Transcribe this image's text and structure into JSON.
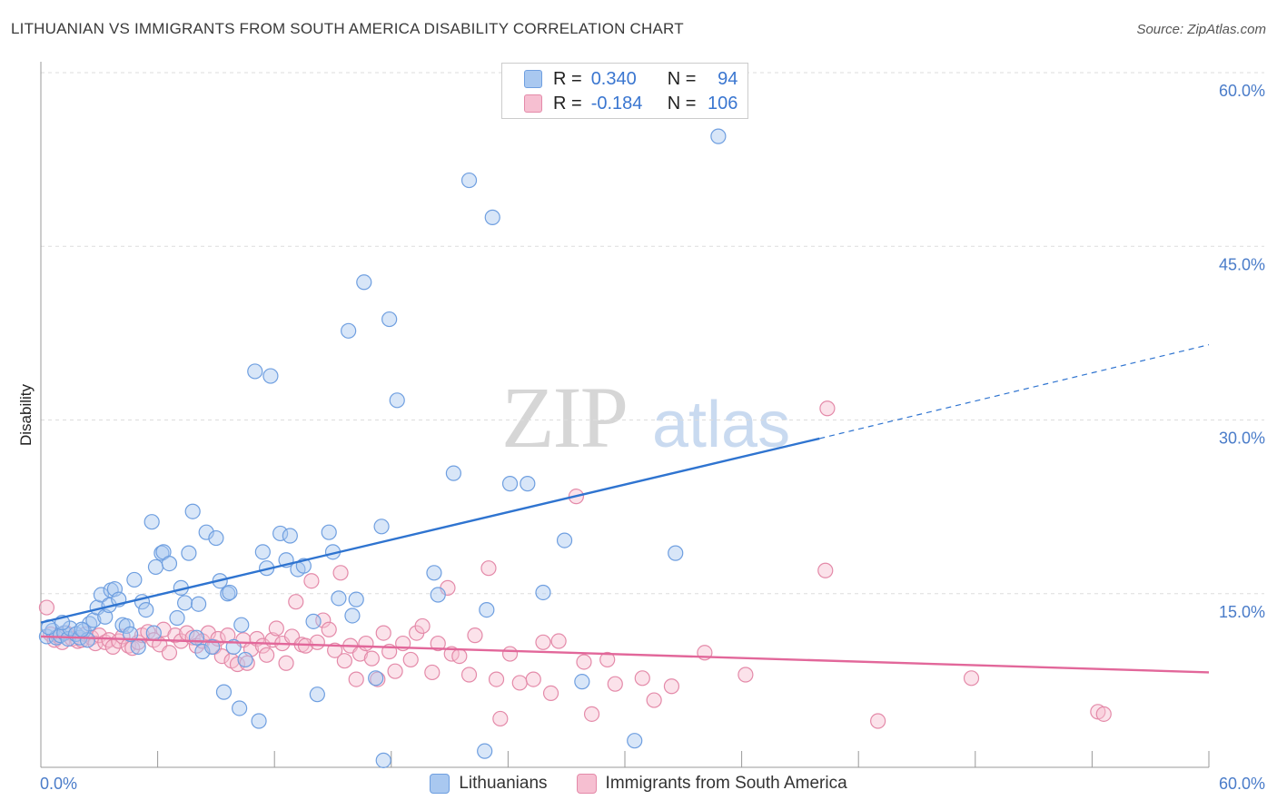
{
  "header": {
    "title": "LITHUANIAN VS IMMIGRANTS FROM SOUTH AMERICA DISABILITY CORRELATION CHART",
    "source": "Source: ZipAtlas.com"
  },
  "watermark": {
    "part1": "ZIP",
    "part2": "atlas"
  },
  "legend": {
    "rows": [
      {
        "r_label": "R =",
        "r_value": "0.340",
        "n_label": "N =",
        "n_value": "94",
        "color": "#a9c8f0",
        "border": "#6f9fe0"
      },
      {
        "r_label": "R =",
        "r_value": "-0.184",
        "n_label": "N =",
        "n_value": "106",
        "color": "#f6bfd1",
        "border": "#e48aa9"
      }
    ]
  },
  "bottom_legend": {
    "items": [
      {
        "label": "Lithuanians",
        "color": "#a9c8f0",
        "border": "#6f9fe0"
      },
      {
        "label": "Immigrants from South America",
        "color": "#f6bfd1",
        "border": "#e48aa9"
      }
    ]
  },
  "chart_data": {
    "type": "scatter",
    "xlabel": "",
    "ylabel": "Disability",
    "xlim": [
      0,
      60
    ],
    "ylim": [
      0,
      60
    ],
    "x_tick_labels": [
      {
        "value": 0,
        "label": "0.0%"
      },
      {
        "value": 60,
        "label": "60.0%"
      }
    ],
    "y_tick_labels": [
      {
        "value": 15,
        "label": "15.0%"
      },
      {
        "value": 30,
        "label": "30.0%"
      },
      {
        "value": 45,
        "label": "45.0%"
      },
      {
        "value": 60,
        "label": "60.0%"
      }
    ],
    "grid": true,
    "colors": {
      "blue": "#6f9fe0",
      "blue_line": "#2f74d0",
      "pink": "#e48aa9",
      "pink_line": "#e2679a"
    },
    "series": [
      {
        "name": "Lithuanians",
        "trend": {
          "x0": 0,
          "y0": 12.5,
          "x1": 40,
          "y1": 28.4,
          "dash_to_x": 60,
          "dash_to_y": 36.5
        },
        "points": [
          [
            0.3,
            11.3
          ],
          [
            0.6,
            11.8
          ],
          [
            0.8,
            11.2
          ],
          [
            1.0,
            11.4
          ],
          [
            1.2,
            11.6
          ],
          [
            1.4,
            11.1
          ],
          [
            1.5,
            12.0
          ],
          [
            1.8,
            11.5
          ],
          [
            2.0,
            11.2
          ],
          [
            2.2,
            11.8
          ],
          [
            2.4,
            11.0
          ],
          [
            2.5,
            12.4
          ],
          [
            2.7,
            12.7
          ],
          [
            2.9,
            13.8
          ],
          [
            3.1,
            14.9
          ],
          [
            3.3,
            13.0
          ],
          [
            3.5,
            14.0
          ],
          [
            3.6,
            15.3
          ],
          [
            3.8,
            15.4
          ],
          [
            4.0,
            14.5
          ],
          [
            4.2,
            12.3
          ],
          [
            4.4,
            12.2
          ],
          [
            4.6,
            11.5
          ],
          [
            4.8,
            16.2
          ],
          [
            5.0,
            10.4
          ],
          [
            5.2,
            14.3
          ],
          [
            5.4,
            13.6
          ],
          [
            5.7,
            21.2
          ],
          [
            5.8,
            11.6
          ],
          [
            5.9,
            17.3
          ],
          [
            6.2,
            18.5
          ],
          [
            6.3,
            18.6
          ],
          [
            6.6,
            17.6
          ],
          [
            7.0,
            12.9
          ],
          [
            7.2,
            15.5
          ],
          [
            7.4,
            14.2
          ],
          [
            7.6,
            18.5
          ],
          [
            7.8,
            22.1
          ],
          [
            8.1,
            14.1
          ],
          [
            8.3,
            10.0
          ],
          [
            8.5,
            20.3
          ],
          [
            8.8,
            10.4
          ],
          [
            9.0,
            19.8
          ],
          [
            9.2,
            16.1
          ],
          [
            9.4,
            6.5
          ],
          [
            9.6,
            15.0
          ],
          [
            9.7,
            15.1
          ],
          [
            9.9,
            10.4
          ],
          [
            10.2,
            5.1
          ],
          [
            10.3,
            12.3
          ],
          [
            10.5,
            9.3
          ],
          [
            11.0,
            34.2
          ],
          [
            11.2,
            4.0
          ],
          [
            11.4,
            18.6
          ],
          [
            11.6,
            17.2
          ],
          [
            11.8,
            33.8
          ],
          [
            12.3,
            20.2
          ],
          [
            12.6,
            17.9
          ],
          [
            12.8,
            20.0
          ],
          [
            13.2,
            17.1
          ],
          [
            13.5,
            17.4
          ],
          [
            14.0,
            12.6
          ],
          [
            14.2,
            6.3
          ],
          [
            14.8,
            20.3
          ],
          [
            15.0,
            18.6
          ],
          [
            15.3,
            14.6
          ],
          [
            15.8,
            37.7
          ],
          [
            16.0,
            13.1
          ],
          [
            16.2,
            14.5
          ],
          [
            16.6,
            41.9
          ],
          [
            17.2,
            7.7
          ],
          [
            17.5,
            20.8
          ],
          [
            17.6,
            0.6
          ],
          [
            17.9,
            38.7
          ],
          [
            18.3,
            31.7
          ],
          [
            20.2,
            16.8
          ],
          [
            20.4,
            14.9
          ],
          [
            21.2,
            25.4
          ],
          [
            22.0,
            50.7
          ],
          [
            22.8,
            1.4
          ],
          [
            22.9,
            13.6
          ],
          [
            23.2,
            47.5
          ],
          [
            24.1,
            24.5
          ],
          [
            25.0,
            24.5
          ],
          [
            25.8,
            15.1
          ],
          [
            26.9,
            19.6
          ],
          [
            27.8,
            7.4
          ],
          [
            30.5,
            2.3
          ],
          [
            32.6,
            18.5
          ],
          [
            34.8,
            54.5
          ],
          [
            0.4,
            12.1
          ],
          [
            1.1,
            12.5
          ],
          [
            2.1,
            11.9
          ],
          [
            8.0,
            11.2
          ]
        ]
      },
      {
        "name": "Immigrants from South America",
        "trend": {
          "x0": 0,
          "y0": 11.3,
          "x1": 60,
          "y1": 8.2
        },
        "points": [
          [
            0.3,
            13.8
          ],
          [
            0.5,
            11.5
          ],
          [
            0.7,
            11.0
          ],
          [
            0.9,
            11.3
          ],
          [
            1.1,
            10.8
          ],
          [
            1.3,
            11.6
          ],
          [
            1.6,
            11.1
          ],
          [
            1.9,
            10.9
          ],
          [
            2.1,
            11.0
          ],
          [
            2.3,
            11.5
          ],
          [
            2.6,
            11.2
          ],
          [
            2.8,
            10.7
          ],
          [
            3.0,
            11.4
          ],
          [
            3.3,
            10.8
          ],
          [
            3.5,
            11.0
          ],
          [
            3.7,
            10.4
          ],
          [
            4.0,
            10.9
          ],
          [
            4.2,
            11.3
          ],
          [
            4.5,
            10.5
          ],
          [
            4.7,
            10.3
          ],
          [
            5.0,
            10.8
          ],
          [
            5.2,
            11.4
          ],
          [
            5.5,
            11.7
          ],
          [
            5.8,
            11.0
          ],
          [
            6.1,
            10.6
          ],
          [
            6.3,
            11.9
          ],
          [
            6.6,
            9.9
          ],
          [
            6.9,
            11.4
          ],
          [
            7.2,
            10.9
          ],
          [
            7.5,
            11.6
          ],
          [
            7.8,
            11.2
          ],
          [
            8.0,
            10.5
          ],
          [
            8.3,
            10.9
          ],
          [
            8.6,
            11.6
          ],
          [
            8.9,
            10.4
          ],
          [
            9.1,
            11.1
          ],
          [
            9.3,
            9.6
          ],
          [
            9.6,
            11.4
          ],
          [
            9.8,
            9.2
          ],
          [
            10.1,
            8.9
          ],
          [
            10.4,
            11.0
          ],
          [
            10.6,
            9.0
          ],
          [
            10.8,
            10.2
          ],
          [
            11.1,
            11.1
          ],
          [
            11.4,
            10.5
          ],
          [
            11.6,
            9.7
          ],
          [
            11.9,
            11.0
          ],
          [
            12.1,
            12.0
          ],
          [
            12.4,
            10.7
          ],
          [
            12.6,
            9.0
          ],
          [
            12.9,
            11.3
          ],
          [
            13.1,
            14.3
          ],
          [
            13.4,
            10.6
          ],
          [
            13.6,
            10.5
          ],
          [
            13.9,
            16.1
          ],
          [
            14.2,
            10.8
          ],
          [
            14.5,
            12.7
          ],
          [
            14.8,
            11.9
          ],
          [
            15.1,
            10.1
          ],
          [
            15.4,
            16.8
          ],
          [
            15.6,
            9.2
          ],
          [
            15.9,
            10.5
          ],
          [
            16.2,
            7.6
          ],
          [
            16.4,
            9.8
          ],
          [
            16.7,
            10.7
          ],
          [
            17.0,
            9.4
          ],
          [
            17.3,
            7.6
          ],
          [
            17.6,
            11.6
          ],
          [
            17.9,
            10.0
          ],
          [
            18.2,
            8.3
          ],
          [
            18.6,
            10.7
          ],
          [
            19.0,
            9.3
          ],
          [
            19.3,
            11.6
          ],
          [
            19.6,
            12.2
          ],
          [
            20.1,
            8.2
          ],
          [
            20.4,
            10.7
          ],
          [
            20.9,
            15.5
          ],
          [
            21.1,
            9.8
          ],
          [
            21.5,
            9.6
          ],
          [
            22.0,
            8.0
          ],
          [
            22.3,
            11.4
          ],
          [
            23.0,
            17.2
          ],
          [
            23.4,
            7.6
          ],
          [
            23.6,
            4.2
          ],
          [
            24.1,
            9.8
          ],
          [
            24.6,
            7.3
          ],
          [
            25.3,
            7.6
          ],
          [
            25.8,
            10.8
          ],
          [
            26.2,
            6.4
          ],
          [
            26.6,
            10.9
          ],
          [
            27.5,
            23.4
          ],
          [
            27.9,
            9.1
          ],
          [
            28.3,
            4.6
          ],
          [
            29.1,
            9.3
          ],
          [
            29.5,
            7.2
          ],
          [
            30.9,
            7.7
          ],
          [
            31.5,
            5.8
          ],
          [
            32.4,
            7.0
          ],
          [
            34.1,
            9.9
          ],
          [
            36.2,
            8.0
          ],
          [
            40.4,
            31.0
          ],
          [
            40.3,
            17.0
          ],
          [
            43.0,
            4.0
          ],
          [
            47.8,
            7.7
          ],
          [
            54.3,
            4.8
          ],
          [
            54.6,
            4.6
          ]
        ]
      }
    ]
  }
}
